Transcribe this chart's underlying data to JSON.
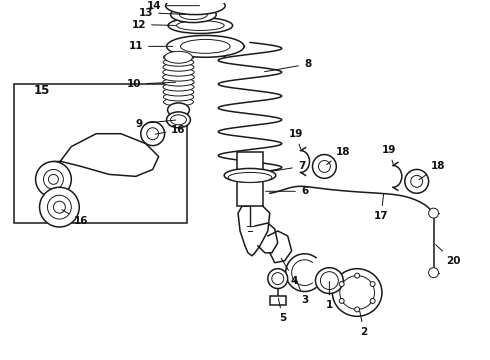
{
  "bg_color": "#ffffff",
  "line_color": "#1a1a1a",
  "label_color": "#111111",
  "font_size": 7.5,
  "figsize": [
    4.9,
    3.6
  ],
  "dpi": 100,
  "xlim": [
    0,
    490
  ],
  "ylim": [
    0,
    360
  ]
}
